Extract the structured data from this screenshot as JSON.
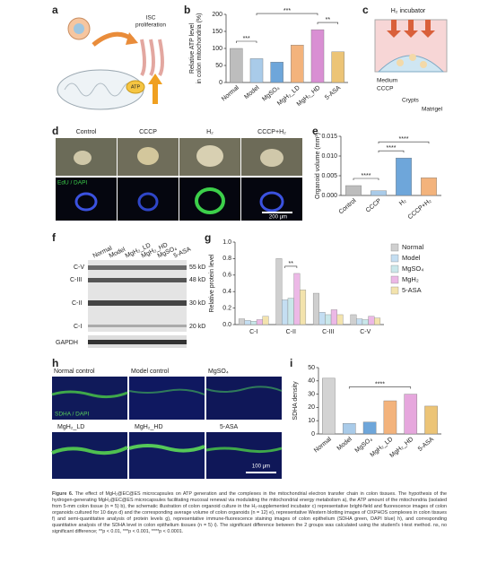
{
  "panels": {
    "labels": [
      "a",
      "b",
      "c",
      "d",
      "e",
      "f",
      "g",
      "h",
      "i"
    ]
  },
  "panel_a": {
    "label_lines": [
      "ISC",
      "proliferation"
    ],
    "atp": "ATP"
  },
  "panel_c": {
    "title": "H₂ incubator",
    "labels": [
      "Medium",
      "CCCP",
      "Crypts",
      "Matrigel"
    ]
  },
  "panel_d": {
    "columns": [
      "Control",
      "CCCP",
      "H₂",
      "CCCP+H₂"
    ],
    "stain": "EdU / DAPI",
    "scale_bar": "200 μm"
  },
  "panel_f": {
    "lanes": [
      "Normal",
      "Model",
      "MgH₂_LD",
      "MgH₂_HD",
      "MgSO₄",
      "5-ASA"
    ],
    "bands": [
      "C-V",
      "C-III",
      "C-II",
      "C-I",
      "GAPDH"
    ],
    "markers": [
      "55 kD",
      "48 kD",
      "30 kD",
      "20 kD"
    ]
  },
  "panel_h": {
    "images": [
      "Normal control",
      "Model control",
      "MgSO₄",
      "MgH₂_LD",
      "MgH₂_HD",
      "5-ASA"
    ],
    "stain": "SDHA / DAPI",
    "scale_bar": "100 μm"
  },
  "chart_data": [
    {
      "type": "bar",
      "ylabel": [
        "Relative ATP level",
        "in colon mitochondria (%)"
      ],
      "categories": [
        "Normal",
        "Model",
        "MgSO₄",
        "MgH₂_LD",
        "MgH₂_HD",
        "5-ASA"
      ],
      "values": [
        100,
        70,
        60,
        110,
        155,
        90
      ],
      "colors": [
        "#bdbdbd",
        "#a9cbe9",
        "#6ea6da",
        "#f3b37c",
        "#d98fd3",
        "#ecc476"
      ],
      "ylim": [
        0,
        200
      ],
      "yticks": [
        0,
        50,
        100,
        150,
        200
      ],
      "annotations": [
        "***",
        "***",
        "**"
      ]
    },
    {
      "type": "bar",
      "ylabel": "Organoid volume (mm³)",
      "categories": [
        "Control",
        "CCCP",
        "H₂",
        "CCCP+H₂"
      ],
      "values": [
        0.0025,
        0.0012,
        0.0095,
        0.0045
      ],
      "colors": [
        "#bdbdbd",
        "#a9cbe9",
        "#6ea6da",
        "#f3b37c"
      ],
      "ylim": [
        0,
        0.015
      ],
      "yticks": [
        {
          "value": 0,
          "label": "0.000"
        },
        {
          "value": 0.005,
          "label": "0.005"
        },
        {
          "value": 0.01,
          "label": "0.010"
        },
        {
          "value": 0.015,
          "label": "0.015"
        }
      ],
      "annotations": [
        "****",
        "****",
        "****"
      ]
    },
    {
      "type": "grouped_bar",
      "ylabel": "Relative protein level",
      "categories": [
        "C-I",
        "C-II",
        "C-III",
        "C-V"
      ],
      "series": [
        {
          "name": "Normal",
          "color": "#cfcfcf",
          "values": [
            0.07,
            0.8,
            0.38,
            0.12
          ]
        },
        {
          "name": "Model",
          "color": "#c4def2",
          "values": [
            0.05,
            0.3,
            0.15,
            0.07
          ]
        },
        {
          "name": "MgSO₄",
          "color": "#c9e7ea",
          "values": [
            0.04,
            0.32,
            0.12,
            0.06
          ]
        },
        {
          "name": "MgH₂",
          "color": "#ecb8e6",
          "values": [
            0.06,
            0.62,
            0.18,
            0.1
          ]
        },
        {
          "name": "5-ASA",
          "color": "#f3e3ad",
          "values": [
            0.1,
            0.42,
            0.12,
            0.08
          ]
        }
      ],
      "ylim": [
        0,
        1.0
      ],
      "yticks": [
        {
          "value": 0,
          "label": "0.0"
        },
        {
          "value": 0.2,
          "label": "0.2"
        },
        {
          "value": 0.4,
          "label": "0.4"
        },
        {
          "value": 0.6,
          "label": "0.6"
        },
        {
          "value": 0.8,
          "label": "0.8"
        },
        {
          "value": 1.0,
          "label": "1.0"
        }
      ],
      "annotations": [
        "**"
      ]
    },
    {
      "type": "bar",
      "ylabel": "SDHA density",
      "categories": [
        "Normal",
        "Model",
        "MgSO₄",
        "MgH₂_LD",
        "MgH₂_HD",
        "5-ASA"
      ],
      "values": [
        42,
        8,
        9,
        25,
        30,
        21
      ],
      "colors": [
        "#d3d3d3",
        "#a9cbe9",
        "#6ea6da",
        "#f3b37c",
        "#e6a7dd",
        "#ecc476"
      ],
      "ylim": [
        0,
        50
      ],
      "yticks": [
        0,
        10,
        20,
        30,
        40,
        50
      ],
      "annotations": [
        "****"
      ]
    }
  ],
  "caption": {
    "label": "Figure 6.",
    "text": "The effect of MgH₂@EC@ES microcapsules on ATP generation and the complexes in the mitochondrial electron transfer chain in colon tissues. The hypothesis of the hydrogen-generating MgH₂@EC@ES microcapsules facilitating mucosal renewal via modulating the mitochondrial energy metabolism a), the ATP amount of the mitochondria (isolated from 5-mm colon tissue (n = 5) b), the schematic illustration of colon organoid culture in the H₂-supplemented incubator c) representative bright-field and fluorescence images of colon organoids cultured for 10 days d) and the corresponding average volume of colon organoids (n = 12) e), representative Western blotting images of OXPHOS complexes in colon tissues f) and semi-quantitative analysis of protein levels g), representative immune-fluorescence staining images of colon epithelium (SDHA green, DAPI blue) h), and corresponding quantitative analysis of the SDHA level in colon epithelium tissues (n = 5) i). The significant difference between the 2 groups was calculated using the student's t-test method. ns, no significant difference; **p < 0.01, ***p < 0.001, ****p < 0.0001."
  }
}
